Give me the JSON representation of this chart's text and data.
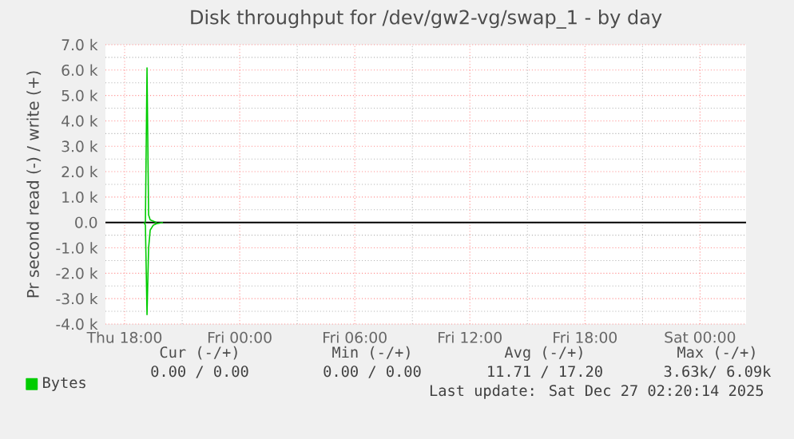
{
  "chart_data": {
    "type": "line",
    "title": "Disk throughput for /dev/gw2-vg/swap_1 - by day",
    "ylabel": "Pr second read (-) / write (+)",
    "series": [
      {
        "name": "Bytes",
        "color": "#00cc00",
        "x": [
          "2025-12-25T19:05",
          "2025-12-25T19:10",
          "2025-12-25T19:15",
          "2025-12-25T19:20",
          "2025-12-25T19:30",
          "2025-12-25T19:40"
        ],
        "values": [
          0,
          6090,
          300,
          100,
          50,
          0
        ]
      },
      {
        "color": "#00cc00",
        "x": [
          "2025-12-25T19:00",
          "2025-12-25T19:05",
          "2025-12-25T19:10",
          "2025-12-25T19:15",
          "2025-12-25T19:20",
          "2025-12-25T19:30",
          "2025-12-25T19:40",
          "2025-12-25T20:00"
        ],
        "values": [
          0,
          -100,
          -3630,
          -1000,
          -300,
          -100,
          -50,
          0
        ]
      }
    ],
    "xlim": [
      "2025-12-25T17:00",
      "2025-12-27T02:24"
    ],
    "ylim": [
      -4000,
      7000
    ],
    "xticks": [
      {
        "value": "2025-12-25T18:00",
        "label": "Thu 18:00"
      },
      {
        "value": "2025-12-26T00:00",
        "label": "Fri 00:00"
      },
      {
        "value": "2025-12-26T06:00",
        "label": "Fri 06:00"
      },
      {
        "value": "2025-12-26T12:00",
        "label": "Fri 12:00"
      },
      {
        "value": "2025-12-26T18:00",
        "label": "Fri 18:00"
      },
      {
        "value": "2025-12-27T00:00",
        "label": "Sat 00:00"
      }
    ],
    "yticks": [
      {
        "value": -4000,
        "label": "-4.0 k"
      },
      {
        "value": -3000,
        "label": "-3.0 k"
      },
      {
        "value": -2000,
        "label": "-2.0 k"
      },
      {
        "value": -1000,
        "label": "-1.0 k"
      },
      {
        "value": 0,
        "label": "0.0"
      },
      {
        "value": 1000,
        "label": "1.0 k"
      },
      {
        "value": 2000,
        "label": "2.0 k"
      },
      {
        "value": 3000,
        "label": "3.0 k"
      },
      {
        "value": 4000,
        "label": "4.0 k"
      },
      {
        "value": 5000,
        "label": "5.0 k"
      },
      {
        "value": 6000,
        "label": "6.0 k"
      },
      {
        "value": 7000,
        "label": "7.0 k"
      }
    ],
    "grid": true,
    "legend": "bottom left",
    "ref_lines": [
      {
        "axis": "y",
        "value": 0,
        "color": "#000000"
      }
    ],
    "annotations": [
      "Cur (-/+)",
      "Min (-/+)",
      "Avg (-/+)",
      "Max (-/+)",
      "0.00 /  0.00",
      "0.00 /  0.00",
      "11.71 / 17.20",
      "3.63k/  6.09k",
      "Last update: Sat Dec 27 02:20:14 2025"
    ]
  }
}
